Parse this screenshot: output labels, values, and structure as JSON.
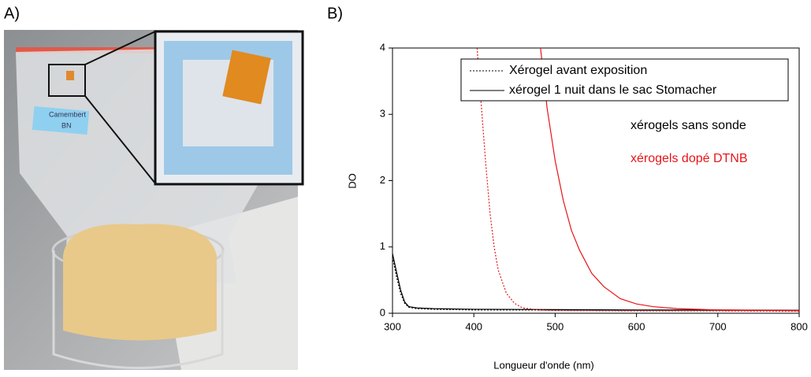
{
  "panels": [
    "A)",
    "B)"
  ],
  "photo": {
    "labels": [
      "Camembert",
      "BN"
    ]
  },
  "chart_data": {
    "type": "line",
    "x_label": "Longueur d'onde (nm)",
    "y_label": "DO",
    "xlim": [
      300,
      800
    ],
    "ylim": [
      0,
      4
    ],
    "xticks": [
      300,
      400,
      500,
      600,
      700,
      800
    ],
    "yticks": [
      0,
      1,
      2,
      3,
      4
    ],
    "grid": false,
    "legend_position": "top-right",
    "legend": [
      {
        "label": "Xérogel avant exposition",
        "dash": "dotted"
      },
      {
        "label": "xérogel 1 nuit dans le sac Stomacher",
        "dash": "solid"
      }
    ],
    "annotations": [
      {
        "text": "xérogels sans sonde",
        "color": "#000000"
      },
      {
        "text": "xérogels dopé DTNB",
        "color": "#e8141a"
      }
    ],
    "series": [
      {
        "color": "#000000",
        "dash": "solid",
        "x": [
          300,
          305,
          310,
          315,
          320,
          330,
          350,
          400,
          500,
          600,
          700,
          800
        ],
        "values": [
          0.9,
          0.62,
          0.35,
          0.17,
          0.1,
          0.08,
          0.07,
          0.06,
          0.055,
          0.05,
          0.05,
          0.045
        ]
      },
      {
        "color": "#000000",
        "dash": "dotted",
        "x": [
          300,
          305,
          310,
          315,
          320,
          330,
          350,
          400,
          500,
          600,
          700,
          800
        ],
        "values": [
          0.85,
          0.55,
          0.3,
          0.15,
          0.09,
          0.07,
          0.06,
          0.05,
          0.05,
          0.045,
          0.045,
          0.04
        ]
      },
      {
        "color": "#e8141a",
        "dash": "dotted",
        "x": [
          404,
          410,
          415,
          420,
          425,
          430,
          440,
          450,
          460,
          480,
          500,
          600,
          700,
          800
        ],
        "values": [
          4,
          3,
          2.2,
          1.5,
          1.0,
          0.65,
          0.3,
          0.15,
          0.08,
          0.05,
          0.04,
          0.035,
          0.035,
          0.03
        ]
      },
      {
        "color": "#e8141a",
        "dash": "solid",
        "x": [
          482,
          490,
          500,
          510,
          520,
          530,
          545,
          560,
          580,
          600,
          620,
          650,
          700,
          750,
          800
        ],
        "values": [
          4,
          3.1,
          2.3,
          1.7,
          1.25,
          0.95,
          0.6,
          0.4,
          0.22,
          0.14,
          0.1,
          0.07,
          0.05,
          0.045,
          0.04
        ]
      }
    ]
  }
}
